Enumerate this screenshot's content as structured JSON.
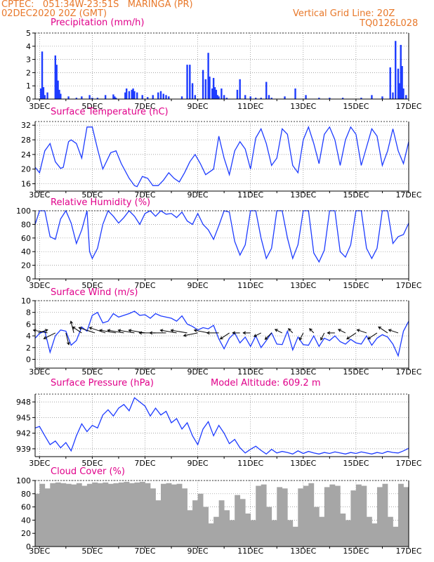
{
  "header": {
    "line1": "CPTEC:   051:34W-23:51S   MARINGA (PR)",
    "line2": "02DEC2020 20Z (GMT)",
    "grid_note": "Vertical Grid Line: 20Z",
    "run_id": "TQ0126L028",
    "model_altitude": "Model Altitude: 609.2 m"
  },
  "colors": {
    "header": "#e8782a",
    "title": "#e0008a",
    "line": "#1e3cff",
    "bar": "#1e3cff",
    "cloud": "#a6a6a6",
    "grid": "#888888"
  },
  "chart_data": [
    {
      "type": "bar",
      "title": "Precipitation (mm/h)",
      "xlabel": "",
      "ylabel": "",
      "x_ticks": [
        "3DEC",
        "5DEC",
        "7DEC",
        "9DEC",
        "11DEC",
        "13DEC",
        "15DEC",
        "17DEC"
      ],
      "x_range_days": [
        2.833,
        17.0
      ],
      "ylim": [
        0,
        5
      ],
      "y_ticks": [
        0,
        1,
        2,
        3,
        4,
        5
      ],
      "x": [
        3.05,
        3.1,
        3.15,
        3.2,
        3.3,
        3.6,
        3.65,
        3.7,
        3.75,
        3.8,
        4.1,
        4.4,
        4.6,
        4.9,
        5.0,
        5.2,
        5.5,
        5.8,
        5.85,
        5.9,
        6.25,
        6.3,
        6.4,
        6.5,
        6.55,
        6.6,
        6.7,
        6.9,
        7.1,
        7.3,
        7.5,
        7.6,
        7.7,
        7.8,
        7.9,
        8.4,
        8.6,
        8.7,
        8.8,
        8.9,
        9.2,
        9.3,
        9.4,
        9.45,
        9.55,
        9.6,
        9.65,
        9.7,
        9.75,
        9.8,
        9.9,
        10.0,
        10.1,
        10.5,
        10.6,
        10.8,
        11.0,
        11.2,
        11.4,
        11.6,
        11.7,
        11.8,
        12.3,
        12.7,
        13.1,
        13.6,
        14.0,
        14.5,
        15.2,
        15.6,
        16.0,
        16.3,
        16.4,
        16.5,
        16.6,
        16.65,
        16.7,
        16.75,
        16.8,
        16.9
      ],
      "values": [
        0.8,
        3.6,
        0.9,
        0.3,
        0.5,
        3.3,
        2.6,
        1.4,
        0.7,
        0.4,
        0.2,
        0.1,
        0.2,
        0.3,
        0.1,
        0.1,
        0.3,
        0.35,
        0.2,
        0.1,
        0.5,
        0.8,
        0.6,
        0.7,
        0.8,
        0.6,
        0.5,
        0.3,
        0.15,
        0.3,
        0.5,
        0.6,
        0.4,
        0.3,
        0.2,
        0.2,
        2.6,
        2.6,
        1.2,
        0.3,
        2.2,
        1.5,
        3.5,
        1.7,
        0.8,
        1.6,
        0.9,
        0.7,
        0.3,
        0.2,
        0.8,
        0.3,
        0.1,
        0.7,
        1.5,
        0.3,
        0.2,
        0.1,
        0.1,
        1.3,
        0.3,
        0.1,
        0.2,
        0.8,
        0.3,
        0.1,
        0.1,
        0.1,
        0.1,
        0.3,
        0.2,
        2.4,
        0.5,
        4.4,
        2.3,
        1.2,
        4.1,
        2.5,
        0.8,
        0.3
      ]
    },
    {
      "type": "line",
      "title": "Surface Temperature (nC)",
      "xlabel": "",
      "ylabel": "",
      "x_ticks": [
        "3DEC",
        "5DEC",
        "7DEC",
        "9DEC",
        "11DEC",
        "13DEC",
        "15DEC",
        "17DEC"
      ],
      "x_range_days": [
        2.833,
        17.0
      ],
      "ylim": [
        14,
        33
      ],
      "y_ticks": [
        16,
        20,
        24,
        28,
        32
      ],
      "x": [
        2.833,
        3.0,
        3.2,
        3.4,
        3.6,
        3.8,
        3.9,
        4.1,
        4.2,
        4.4,
        4.6,
        4.8,
        5.0,
        5.2,
        5.4,
        5.5,
        5.7,
        5.9,
        6.1,
        6.4,
        6.6,
        6.7,
        6.9,
        7.1,
        7.3,
        7.5,
        7.7,
        7.9,
        8.1,
        8.3,
        8.5,
        8.7,
        8.9,
        9.1,
        9.3,
        9.6,
        9.8,
        10.0,
        10.2,
        10.4,
        10.6,
        10.8,
        11.0,
        11.2,
        11.4,
        11.6,
        11.8,
        12.0,
        12.2,
        12.4,
        12.6,
        12.8,
        13.0,
        13.2,
        13.4,
        13.6,
        13.8,
        14.0,
        14.2,
        14.4,
        14.6,
        14.8,
        15.0,
        15.2,
        15.4,
        15.6,
        15.8,
        16.0,
        16.2,
        16.4,
        16.6,
        16.8,
        17.0
      ],
      "values": [
        20.5,
        19.0,
        25.0,
        27.0,
        22.0,
        20.2,
        20.5,
        27.5,
        28.0,
        27.0,
        23.0,
        31.5,
        31.5,
        25.5,
        20.0,
        21.5,
        24.5,
        25.0,
        21.5,
        17.5,
        15.5,
        15.2,
        18.0,
        17.5,
        15.5,
        15.5,
        17.0,
        19.0,
        17.5,
        16.5,
        19.0,
        22.0,
        24.0,
        21.5,
        18.5,
        20.0,
        29.0,
        23.0,
        18.5,
        25.0,
        27.5,
        25.5,
        20.0,
        28.5,
        31.0,
        27.0,
        21.0,
        23.0,
        31.0,
        29.5,
        21.0,
        19.0,
        28.0,
        31.5,
        27.0,
        21.5,
        29.5,
        31.5,
        28.0,
        21.0,
        28.0,
        31.5,
        29.5,
        21.0,
        26.0,
        31.0,
        29.0,
        21.0,
        25.0,
        31.0,
        25.0,
        21.5,
        27.5
      ]
    },
    {
      "type": "line",
      "title": "Relative Humidity (%)",
      "xlabel": "",
      "ylabel": "",
      "x_ticks": [
        "3DEC",
        "5DEC",
        "7DEC",
        "9DEC",
        "11DEC",
        "13DEC",
        "15DEC",
        "17DEC"
      ],
      "x_range_days": [
        2.833,
        17.0
      ],
      "ylim": [
        0,
        100
      ],
      "y_ticks": [
        0,
        20,
        40,
        60,
        80,
        100
      ],
      "x": [
        2.833,
        3.0,
        3.2,
        3.4,
        3.6,
        3.8,
        4.0,
        4.2,
        4.4,
        4.6,
        4.8,
        4.9,
        5.0,
        5.2,
        5.4,
        5.6,
        5.8,
        6.0,
        6.2,
        6.4,
        6.6,
        6.8,
        7.0,
        7.2,
        7.4,
        7.6,
        7.8,
        8.0,
        8.2,
        8.4,
        8.6,
        8.8,
        9.0,
        9.2,
        9.4,
        9.6,
        9.8,
        10.0,
        10.2,
        10.4,
        10.6,
        10.8,
        11.0,
        11.2,
        11.4,
        11.6,
        11.8,
        12.0,
        12.2,
        12.4,
        12.6,
        12.8,
        13.0,
        13.2,
        13.4,
        13.6,
        13.8,
        14.0,
        14.2,
        14.4,
        14.6,
        14.8,
        15.0,
        15.2,
        15.4,
        15.6,
        15.8,
        16.0,
        16.2,
        16.4,
        16.6,
        16.8,
        17.0
      ],
      "values": [
        80,
        100,
        100,
        62,
        58,
        88,
        100,
        82,
        52,
        72,
        100,
        40,
        30,
        45,
        80,
        100,
        92,
        82,
        90,
        100,
        92,
        80,
        96,
        100,
        92,
        100,
        95,
        96,
        90,
        98,
        85,
        80,
        96,
        80,
        72,
        58,
        78,
        100,
        98,
        55,
        35,
        50,
        100,
        100,
        60,
        30,
        45,
        100,
        100,
        60,
        30,
        50,
        100,
        100,
        38,
        25,
        42,
        100,
        100,
        40,
        32,
        50,
        100,
        100,
        45,
        30,
        45,
        100,
        100,
        52,
        62,
        65,
        82
      ]
    },
    {
      "type": "line",
      "title": "Surface Wind (m/s)",
      "xlabel": "",
      "ylabel": "",
      "x_ticks": [
        "3DEC",
        "5DEC",
        "7DEC",
        "9DEC",
        "11DEC",
        "13DEC",
        "15DEC",
        "17DEC"
      ],
      "x_range_days": [
        2.833,
        17.0
      ],
      "ylim": [
        -1.5,
        10
      ],
      "y_ticks": [
        0,
        2,
        4,
        6,
        8,
        10
      ],
      "x": [
        2.833,
        3.0,
        3.2,
        3.4,
        3.6,
        3.8,
        4.0,
        4.2,
        4.4,
        4.6,
        4.8,
        5.0,
        5.2,
        5.4,
        5.6,
        5.8,
        6.0,
        6.2,
        6.4,
        6.6,
        6.8,
        7.0,
        7.2,
        7.4,
        7.6,
        7.8,
        8.0,
        8.2,
        8.4,
        8.6,
        8.8,
        9.0,
        9.2,
        9.4,
        9.6,
        9.8,
        10.0,
        10.2,
        10.4,
        10.6,
        10.8,
        11.0,
        11.2,
        11.4,
        11.6,
        11.8,
        12.0,
        12.2,
        12.4,
        12.6,
        12.8,
        13.0,
        13.2,
        13.4,
        13.6,
        13.8,
        14.0,
        14.2,
        14.4,
        14.6,
        14.8,
        15.0,
        15.2,
        15.4,
        15.6,
        15.8,
        16.0,
        16.2,
        16.4,
        16.6,
        16.8,
        17.0
      ],
      "values": [
        3.6,
        4.4,
        4.8,
        1.2,
        4.0,
        5.0,
        4.8,
        2.4,
        3.2,
        5.5,
        4.8,
        7.5,
        8.0,
        6.2,
        6.5,
        7.8,
        7.2,
        7.5,
        7.8,
        8.2,
        7.5,
        7.6,
        7.0,
        7.8,
        7.4,
        7.2,
        7.0,
        6.5,
        7.4,
        6.0,
        5.6,
        5.0,
        5.4,
        5.2,
        5.8,
        3.5,
        1.8,
        3.6,
        4.5,
        2.8,
        3.8,
        2.2,
        4.0,
        2.0,
        3.2,
        4.5,
        2.6,
        2.5,
        4.8,
        1.6,
        3.8,
        2.5,
        2.4,
        4.0,
        2.2,
        3.6,
        3.2,
        4.0,
        3.0,
        2.6,
        3.4,
        2.8,
        2.6,
        4.0,
        2.4,
        3.6,
        4.2,
        3.8,
        2.6,
        0.6,
        4.8,
        6.5
      ],
      "wind_arrows": {
        "x": [
          2.95,
          3.3,
          3.6,
          4.0,
          4.3,
          4.6,
          5.1,
          5.5,
          5.9,
          6.2,
          6.6,
          7.0,
          7.4,
          7.8,
          8.2,
          8.6,
          9.0,
          9.4,
          9.8,
          10.2,
          10.6,
          11.0,
          11.4,
          11.8,
          12.2,
          12.6,
          13.0,
          13.4,
          13.8,
          14.2,
          14.6,
          15.0,
          15.4,
          15.8,
          16.2,
          16.6
        ],
        "u": [
          3,
          -5,
          -4,
          1,
          -1,
          -3,
          -6,
          -6,
          -6,
          -6,
          -6,
          -6,
          -6,
          -6,
          -6,
          -6,
          -5,
          -5,
          -4,
          -3,
          -2,
          -2,
          -2,
          -2,
          -2,
          -1,
          -1,
          -1,
          -1,
          -2,
          -2,
          -3,
          -3,
          -3,
          -3,
          -3
        ],
        "v": [
          1,
          1,
          -2,
          -4,
          4,
          2,
          2,
          2,
          1,
          1,
          1,
          1,
          0,
          0,
          1,
          1,
          -1,
          1,
          0,
          -2,
          0,
          0,
          -1,
          -2,
          1,
          1,
          -2,
          1,
          -2,
          0,
          1,
          -2,
          1,
          -2,
          2,
          1
        ]
      }
    },
    {
      "type": "line",
      "title": "Surface Pressure (hPa)",
      "xlabel": "",
      "ylabel": "",
      "x_ticks": [
        "3DEC",
        "5DEC",
        "7DEC",
        "9DEC",
        "11DEC",
        "13DEC",
        "15DEC",
        "17DEC"
      ],
      "x_range_days": [
        2.833,
        17.0
      ],
      "ylim": [
        937.5,
        949.5
      ],
      "y_ticks": [
        939,
        942,
        945,
        948
      ],
      "x": [
        2.833,
        3.0,
        3.2,
        3.4,
        3.6,
        3.8,
        4.0,
        4.2,
        4.4,
        4.6,
        4.8,
        5.0,
        5.2,
        5.4,
        5.6,
        5.8,
        6.0,
        6.2,
        6.4,
        6.6,
        6.8,
        7.0,
        7.2,
        7.4,
        7.6,
        7.8,
        8.0,
        8.2,
        8.4,
        8.6,
        8.8,
        9.0,
        9.2,
        9.4,
        9.6,
        9.8,
        10.0,
        10.2,
        10.4,
        10.6,
        10.8,
        11.0,
        11.2,
        11.4,
        11.6,
        11.8,
        12.0,
        12.2,
        12.4,
        12.6,
        12.8,
        13.0,
        13.2,
        13.4,
        13.6,
        13.8,
        14.0,
        14.2,
        14.4,
        14.6,
        14.8,
        15.0,
        15.2,
        15.4,
        15.6,
        15.8,
        16.0,
        16.2,
        16.4,
        16.6,
        16.8,
        17.0
      ],
      "values": [
        943.0,
        943.3,
        941.5,
        939.8,
        940.5,
        939.2,
        940.2,
        938.6,
        941.5,
        943.8,
        942.3,
        943.5,
        943.0,
        945.5,
        946.5,
        945.3,
        946.8,
        947.5,
        946.3,
        948.8,
        948.0,
        947.2,
        945.3,
        946.8,
        945.5,
        946.2,
        944.0,
        944.8,
        942.8,
        944.0,
        941.5,
        939.8,
        942.8,
        944.2,
        941.5,
        943.5,
        942.0,
        940.0,
        940.8,
        939.2,
        938.2,
        938.9,
        939.5,
        938.7,
        938.0,
        938.9,
        938.2,
        938.5,
        938.3,
        938.0,
        938.6,
        938.1,
        938.5,
        938.2,
        938.0,
        938.3,
        938.1,
        938.4,
        938.2,
        938.0,
        938.3,
        938.1,
        938.4,
        938.2,
        938.0,
        938.3,
        938.1,
        938.5,
        938.3,
        938.2,
        938.6,
        939.1
      ]
    },
    {
      "type": "bar",
      "title": "Cloud Cover (%)",
      "xlabel": "",
      "ylabel": "",
      "x_ticks": [
        "3DEC",
        "5DEC",
        "7DEC",
        "9DEC",
        "11DEC",
        "13DEC",
        "15DEC",
        "17DEC"
      ],
      "x_range_days": [
        2.833,
        17.0
      ],
      "ylim": [
        0,
        100
      ],
      "y_ticks": [
        0,
        20,
        40,
        60,
        80,
        100
      ],
      "x": [
        2.833,
        3.0,
        3.2,
        3.4,
        3.6,
        3.8,
        4.0,
        4.2,
        4.4,
        4.6,
        4.8,
        5.0,
        5.2,
        5.4,
        5.6,
        5.8,
        6.0,
        6.2,
        6.4,
        6.6,
        6.8,
        7.0,
        7.2,
        7.4,
        7.6,
        7.8,
        8.0,
        8.2,
        8.4,
        8.6,
        8.8,
        9.0,
        9.2,
        9.4,
        9.6,
        9.8,
        10.0,
        10.2,
        10.4,
        10.6,
        10.8,
        11.0,
        11.2,
        11.4,
        11.6,
        11.8,
        12.0,
        12.2,
        12.4,
        12.6,
        12.8,
        13.0,
        13.2,
        13.4,
        13.6,
        13.8,
        14.0,
        14.2,
        14.4,
        14.6,
        14.8,
        15.0,
        15.2,
        15.4,
        15.6,
        15.8,
        16.0,
        16.2,
        16.4,
        16.6,
        16.8,
        17.0
      ],
      "values": [
        80,
        95,
        88,
        96,
        97,
        96,
        95,
        94,
        96,
        92,
        95,
        97,
        96,
        97,
        95,
        96,
        97,
        98,
        96,
        97,
        98,
        96,
        88,
        70,
        95,
        96,
        94,
        95,
        88,
        55,
        70,
        80,
        60,
        35,
        45,
        70,
        55,
        40,
        78,
        72,
        50,
        40,
        92,
        94,
        60,
        40,
        90,
        88,
        40,
        30,
        88,
        92,
        96,
        60,
        45,
        90,
        94,
        92,
        50,
        40,
        85,
        94,
        92,
        45,
        35,
        90,
        95,
        45,
        30,
        95,
        90,
        92
      ]
    }
  ]
}
